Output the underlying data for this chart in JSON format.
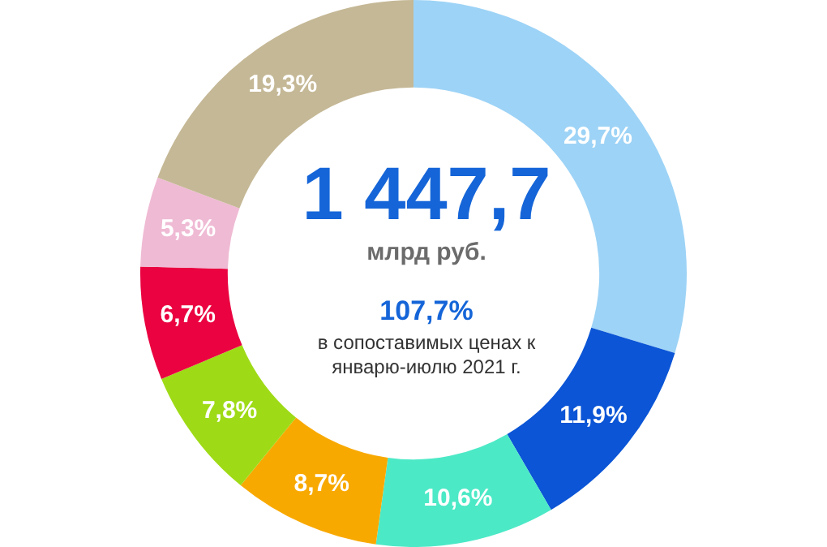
{
  "chart_data": {
    "type": "donut",
    "title": "1 447,7",
    "subtitle": "млрд руб.",
    "annotations": [
      "107,7%",
      "в сопоставимых ценах к январю-июлю 2021 г."
    ],
    "categories": [
      null,
      null,
      null,
      null,
      null,
      null,
      null,
      null
    ],
    "values": [
      29.7,
      11.9,
      10.6,
      8.7,
      7.8,
      6.7,
      5.3,
      19.3
    ],
    "colors": [
      "#9dd3f6",
      "#0b55d6",
      "#4ce9c6",
      "#f8a900",
      "#9edb16",
      "#ea0340",
      "#efbad4",
      "#c5b896"
    ],
    "value_labels": [
      "29,7%",
      "11,9%",
      "10,6%",
      "8,7%",
      "7,8%",
      "6,7%",
      "5,3%",
      "19,3%"
    ],
    "legend": false
  }
}
